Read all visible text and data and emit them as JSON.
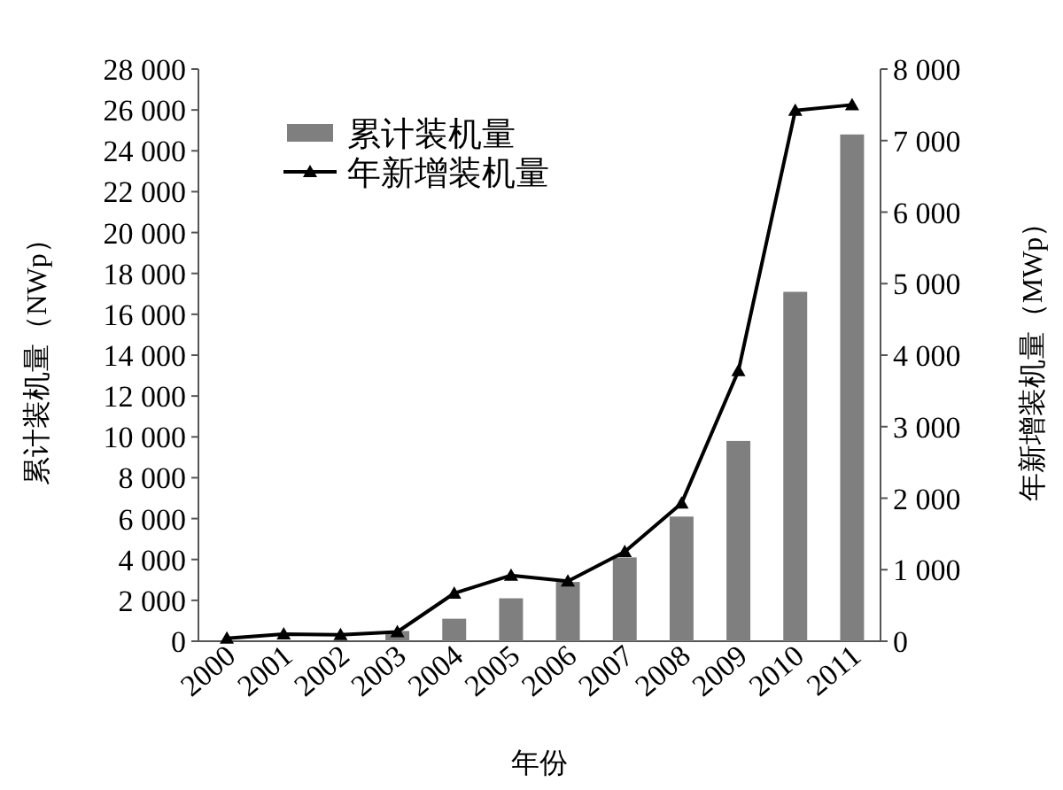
{
  "chart_data": {
    "type": "bar",
    "xlabel": "年份",
    "ylabel": "累计装机量（NWp）",
    "y2label": "年新增装机量（MWp）",
    "categories": [
      "2000",
      "2001",
      "2002",
      "2003",
      "2004",
      "2005",
      "2006",
      "2007",
      "2008",
      "2009",
      "2010",
      "2011"
    ],
    "series": [
      {
        "name": "累计装机量",
        "color": "#7f7f7f",
        "values": [
          null,
          null,
          null,
          500,
          1100,
          2100,
          2900,
          4100,
          6100,
          9800,
          17100,
          24800
        ]
      },
      {
        "name": "年新增装机量",
        "type": "line",
        "axis": "y2",
        "color": "#000000",
        "marker": "triangle",
        "values": [
          40,
          100,
          90,
          130,
          670,
          920,
          840,
          1250,
          1930,
          3780,
          7420,
          7500
        ]
      }
    ],
    "ylim": [
      0,
      28000
    ],
    "yticks": [
      0,
      {
        "value": 2000,
        "label": "2 000"
      },
      {
        "value": 4000,
        "label": "4 000"
      },
      {
        "value": 6000,
        "label": "6 000"
      },
      {
        "value": 8000,
        "label": "8 000"
      },
      {
        "value": 10000,
        "label": "10 000"
      },
      {
        "value": 12000,
        "label": "12 000"
      },
      {
        "value": 14000,
        "label": "14 000"
      },
      {
        "value": 16000,
        "label": "16 000"
      },
      {
        "value": 18000,
        "label": "18 000"
      },
      {
        "value": 20000,
        "label": "20 000"
      },
      {
        "value": 22000,
        "label": "22 000"
      },
      {
        "value": 24000,
        "label": "24 000"
      },
      {
        "value": 26000,
        "label": "26 000"
      },
      {
        "value": 28000,
        "label": "28 000"
      }
    ],
    "y2lim": [
      0,
      8000
    ],
    "y2ticks": [
      0,
      {
        "value": 1000,
        "label": "1 000"
      },
      {
        "value": 2000,
        "label": "2 000"
      },
      {
        "value": 3000,
        "label": "3 000"
      },
      {
        "value": 4000,
        "label": "4 000"
      },
      {
        "value": 5000,
        "label": "5 000"
      },
      {
        "value": 6000,
        "label": "6 000"
      },
      {
        "value": 7000,
        "label": "7 000"
      },
      {
        "value": 8000,
        "label": "8 000"
      }
    ],
    "legend": "top left",
    "grid": false
  }
}
